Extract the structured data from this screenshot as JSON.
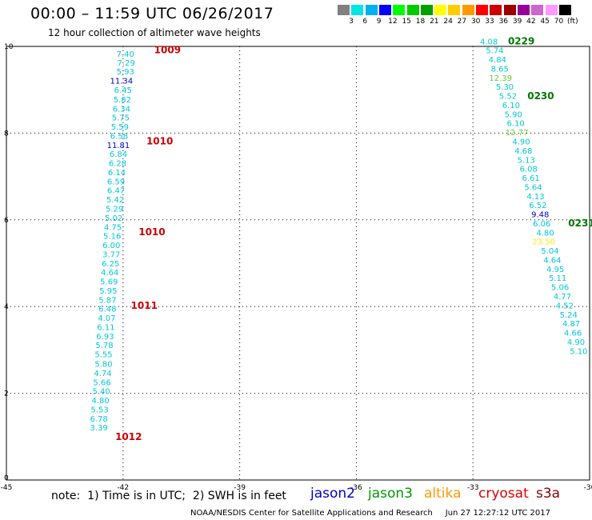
{
  "header": {
    "title": "00:00 – 11:59 UTC 06/26/2017",
    "subtitle": "12 hour collection of altimeter wave heights"
  },
  "colorbar": {
    "boxes": [
      "#808080",
      "#00e5e5",
      "#00b0f0",
      "#0000ff",
      "#00ff00",
      "#00cc00",
      "#00a000",
      "#ffff00",
      "#ffcc00",
      "#ff9900",
      "#ff0000",
      "#cc0000",
      "#990000",
      "#990099",
      "#cc66cc",
      "#ff99ff",
      "#000000"
    ],
    "labels": [
      "3",
      "6",
      "9",
      "12",
      "15",
      "18",
      "21",
      "24",
      "27",
      "30",
      "33",
      "36",
      "39",
      "42",
      "45",
      "70",
      "(ft)"
    ]
  },
  "axes": {
    "x_ticks": [
      "-45",
      "-42",
      "-39",
      "-36",
      "-33",
      "-30"
    ],
    "y_ticks": [
      "0",
      "2",
      "4",
      "6",
      "8",
      "10"
    ]
  },
  "colors": {
    "cyan": "#00c8d8",
    "blue": "#0000cc",
    "lightgreen": "#66cc33",
    "yellow": "#ffee00",
    "time_red": "#cc0000",
    "time_green": "#007700",
    "grid": "#000000"
  },
  "tracks": [
    {
      "name": "left-track",
      "observations": [
        {
          "v": "7.40",
          "x": -41.94,
          "y": 9.76,
          "c": "cyan"
        },
        {
          "v": "7.29",
          "x": -41.92,
          "y": 9.56,
          "c": "cyan"
        },
        {
          "v": "5.93",
          "x": -41.94,
          "y": 9.35,
          "c": "cyan"
        },
        {
          "v": "11.34",
          "x": -42.04,
          "y": 9.14,
          "c": "blue"
        },
        {
          "v": "6.45",
          "x": -42.0,
          "y": 8.93,
          "c": "cyan"
        },
        {
          "v": "5.82",
          "x": -42.02,
          "y": 8.71,
          "c": "cyan"
        },
        {
          "v": "6.34",
          "x": -42.04,
          "y": 8.5,
          "c": "cyan"
        },
        {
          "v": "5.75",
          "x": -42.06,
          "y": 8.29,
          "c": "cyan"
        },
        {
          "v": "5.59",
          "x": -42.08,
          "y": 8.08,
          "c": "cyan"
        },
        {
          "v": "6.58",
          "x": -42.1,
          "y": 7.87,
          "c": "cyan"
        },
        {
          "v": "11.81",
          "x": -42.12,
          "y": 7.66,
          "c": "blue"
        },
        {
          "v": "6.84",
          "x": -42.12,
          "y": 7.45,
          "c": "cyan"
        },
        {
          "v": "6.28",
          "x": -42.14,
          "y": 7.24,
          "c": "cyan"
        },
        {
          "v": "6.14",
          "x": -42.16,
          "y": 7.03,
          "c": "cyan"
        },
        {
          "v": "6.59",
          "x": -42.18,
          "y": 6.82,
          "c": "cyan"
        },
        {
          "v": "6.47",
          "x": -42.18,
          "y": 6.61,
          "c": "cyan"
        },
        {
          "v": "5.42",
          "x": -42.2,
          "y": 6.4,
          "c": "cyan"
        },
        {
          "v": "5.29",
          "x": -42.22,
          "y": 6.19,
          "c": "cyan"
        },
        {
          "v": "5.02",
          "x": -42.24,
          "y": 5.98,
          "c": "cyan"
        },
        {
          "v": "4.75",
          "x": -42.26,
          "y": 5.77,
          "c": "cyan"
        },
        {
          "v": "5.16",
          "x": -42.28,
          "y": 5.56,
          "c": "cyan"
        },
        {
          "v": "6.00",
          "x": -42.3,
          "y": 5.35,
          "c": "cyan"
        },
        {
          "v": "3.77",
          "x": -42.3,
          "y": 5.14,
          "c": "cyan"
        },
        {
          "v": "6.25",
          "x": -42.32,
          "y": 4.93,
          "c": "cyan"
        },
        {
          "v": "4.64",
          "x": -42.34,
          "y": 4.72,
          "c": "cyan"
        },
        {
          "v": "5.69",
          "x": -42.36,
          "y": 4.51,
          "c": "cyan"
        },
        {
          "v": "5.95",
          "x": -42.38,
          "y": 4.3,
          "c": "cyan"
        },
        {
          "v": "5.87",
          "x": -42.4,
          "y": 4.09,
          "c": "cyan"
        },
        {
          "v": "6.48",
          "x": -42.4,
          "y": 3.88,
          "c": "cyan"
        },
        {
          "v": "4.07",
          "x": -42.42,
          "y": 3.67,
          "c": "cyan"
        },
        {
          "v": "6.11",
          "x": -42.44,
          "y": 3.46,
          "c": "cyan"
        },
        {
          "v": "6.93",
          "x": -42.46,
          "y": 3.25,
          "c": "cyan"
        },
        {
          "v": "5.78",
          "x": -42.48,
          "y": 3.04,
          "c": "cyan"
        },
        {
          "v": "5.55",
          "x": -42.5,
          "y": 2.83,
          "c": "cyan"
        },
        {
          "v": "5.80",
          "x": -42.5,
          "y": 2.61,
          "c": "cyan"
        },
        {
          "v": "4.74",
          "x": -42.52,
          "y": 2.4,
          "c": "cyan"
        },
        {
          "v": "5.66",
          "x": -42.54,
          "y": 2.19,
          "c": "cyan"
        },
        {
          "v": "5.40",
          "x": -42.56,
          "y": 1.98,
          "c": "cyan"
        },
        {
          "v": "4.80",
          "x": -42.58,
          "y": 1.77,
          "c": "cyan"
        },
        {
          "v": "5.53",
          "x": -42.6,
          "y": 1.56,
          "c": "cyan"
        },
        {
          "v": "6.78",
          "x": -42.62,
          "y": 1.35,
          "c": "cyan"
        },
        {
          "v": "3.39",
          "x": -42.62,
          "y": 1.14,
          "c": "cyan"
        }
      ]
    },
    {
      "name": "right-track",
      "observations": [
        {
          "v": "4.08",
          "x": -32.59,
          "y": 10.05,
          "c": "cyan"
        },
        {
          "v": "5.74",
          "x": -32.44,
          "y": 9.84,
          "c": "cyan"
        },
        {
          "v": "4.84",
          "x": -32.37,
          "y": 9.63,
          "c": "cyan"
        },
        {
          "v": "8.65",
          "x": -32.31,
          "y": 9.42,
          "c": "cyan"
        },
        {
          "v": "12.39",
          "x": -32.29,
          "y": 9.21,
          "c": "lightgreen"
        },
        {
          "v": "5.30",
          "x": -32.18,
          "y": 9.0,
          "c": "cyan"
        },
        {
          "v": "5.52",
          "x": -32.1,
          "y": 8.79,
          "c": "cyan"
        },
        {
          "v": "6.10",
          "x": -32.02,
          "y": 8.58,
          "c": "cyan"
        },
        {
          "v": "5.90",
          "x": -31.96,
          "y": 8.37,
          "c": "cyan"
        },
        {
          "v": "6.10",
          "x": -31.9,
          "y": 8.16,
          "c": "cyan"
        },
        {
          "v": "12.77",
          "x": -31.87,
          "y": 7.95,
          "c": "lightgreen"
        },
        {
          "v": "4.90",
          "x": -31.76,
          "y": 7.74,
          "c": "cyan"
        },
        {
          "v": "4.68",
          "x": -31.7,
          "y": 7.53,
          "c": "cyan"
        },
        {
          "v": "5.13",
          "x": -31.63,
          "y": 7.32,
          "c": "cyan"
        },
        {
          "v": "6.08",
          "x": -31.57,
          "y": 7.11,
          "c": "cyan"
        },
        {
          "v": "6.61",
          "x": -31.51,
          "y": 6.9,
          "c": "cyan"
        },
        {
          "v": "5.64",
          "x": -31.45,
          "y": 6.69,
          "c": "cyan"
        },
        {
          "v": "4.13",
          "x": -31.39,
          "y": 6.48,
          "c": "cyan"
        },
        {
          "v": "6.52",
          "x": -31.33,
          "y": 6.27,
          "c": "cyan"
        },
        {
          "v": "9.48",
          "x": -31.27,
          "y": 6.06,
          "c": "blue"
        },
        {
          "v": "6.06",
          "x": -31.23,
          "y": 5.85,
          "c": "cyan"
        },
        {
          "v": "4.80",
          "x": -31.14,
          "y": 5.64,
          "c": "cyan"
        },
        {
          "v": "23.50",
          "x": -31.18,
          "y": 5.43,
          "c": "yellow"
        },
        {
          "v": "5.04",
          "x": -31.02,
          "y": 5.22,
          "c": "cyan"
        },
        {
          "v": "4.64",
          "x": -30.96,
          "y": 5.01,
          "c": "cyan"
        },
        {
          "v": "4.95",
          "x": -30.88,
          "y": 4.8,
          "c": "cyan"
        },
        {
          "v": "5.11",
          "x": -30.82,
          "y": 4.59,
          "c": "cyan"
        },
        {
          "v": "5.06",
          "x": -30.76,
          "y": 4.38,
          "c": "cyan"
        },
        {
          "v": "4.77",
          "x": -30.7,
          "y": 4.17,
          "c": "cyan"
        },
        {
          "v": "4.52",
          "x": -30.64,
          "y": 3.96,
          "c": "cyan"
        },
        {
          "v": "5.24",
          "x": -30.54,
          "y": 3.75,
          "c": "cyan"
        },
        {
          "v": "4.87",
          "x": -30.47,
          "y": 3.54,
          "c": "cyan"
        },
        {
          "v": "4.66",
          "x": -30.43,
          "y": 3.33,
          "c": "cyan"
        },
        {
          "v": "4.90",
          "x": -30.35,
          "y": 3.12,
          "c": "cyan"
        },
        {
          "v": "5.10",
          "x": -30.28,
          "y": 2.91,
          "c": "cyan"
        }
      ]
    }
  ],
  "time_labels": [
    {
      "text": "1009",
      "x": -41.2,
      "y": 9.84,
      "c": "time_red"
    },
    {
      "text": "1010",
      "x": -41.4,
      "y": 7.74,
      "c": "time_red"
    },
    {
      "text": "1010",
      "x": -41.6,
      "y": 5.65,
      "c": "time_red"
    },
    {
      "text": "1011",
      "x": -41.8,
      "y": 3.95,
      "c": "time_red"
    },
    {
      "text": "1012",
      "x": -42.2,
      "y": 0.92,
      "c": "time_red"
    },
    {
      "text": "0229",
      "x": -32.1,
      "y": 10.05,
      "c": "time_green"
    },
    {
      "text": "0230",
      "x": -31.6,
      "y": 8.78,
      "c": "time_green"
    },
    {
      "text": "0231",
      "x": -30.55,
      "y": 5.85,
      "c": "time_green"
    }
  ],
  "footer": {
    "note": "note:  1) Time is in UTC;  2) SWH is in feet",
    "legend": [
      {
        "label": "jason2",
        "color": "#0000cc"
      },
      {
        "label": "jason3",
        "color": "#009900"
      },
      {
        "label": "altika",
        "color": "#ff9900"
      },
      {
        "label": "cryosat",
        "color": "#dd0000"
      },
      {
        "label": "s3a",
        "color": "#880000"
      }
    ],
    "credit": "NOAA/NESDIS Center for Satellite Applications and Research     Jun 27 12:27:12 UTC 2017"
  }
}
